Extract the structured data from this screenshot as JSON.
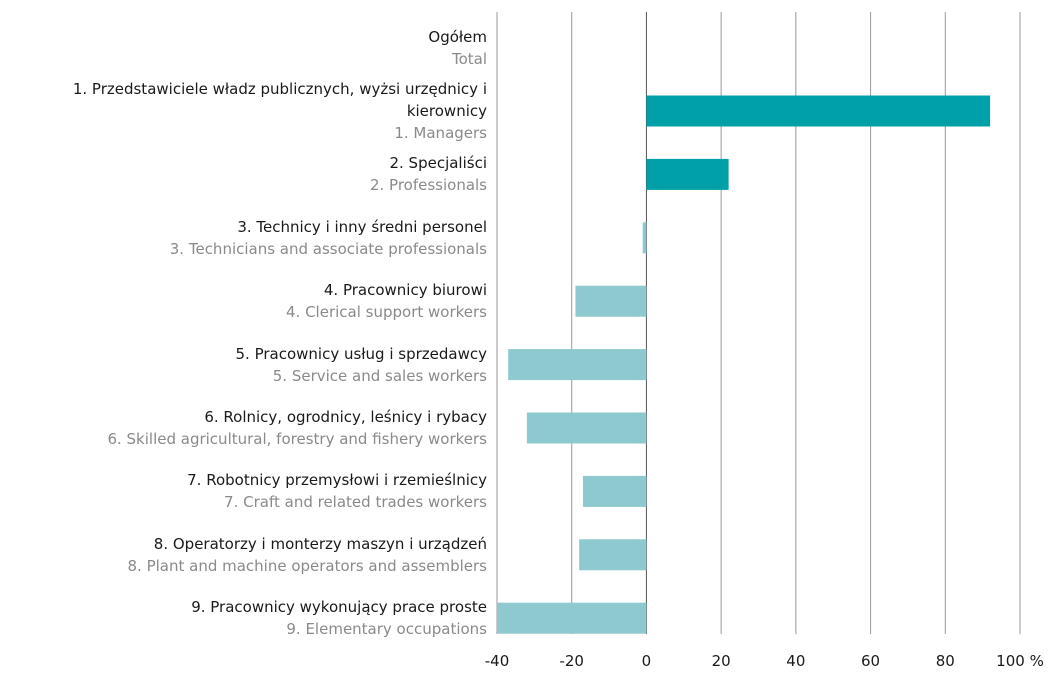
{
  "chart_data": {
    "type": "bar",
    "orientation": "horizontal",
    "categories": [
      "Ogółem",
      "1. Przedstawiciele władz publicznych, wyżsi urzędnicy i kierownicy",
      "2. Specjaliści",
      "3. Technicy i inny średni personel",
      "4. Pracownicy biurowi",
      "5. Pracownicy usług i sprzedawcy",
      "6. Rolnicy, ogrodnicy, leśnicy i rybacy",
      "7. Robotnicy przemysłowi i rzemieślnicy",
      "8. Operatorzy i monterzy maszyn  i urządzeń",
      "9. Pracownicy wykonujący prace proste"
    ],
    "categories_en": [
      "Total",
      "1. Managers",
      "2. Professionals",
      "3. Technicians and associate professionals",
      "4. Clerical support workers",
      "5. Service and sales workers",
      "6. Skilled agricultural, forestry and fishery workers",
      "7. Craft and related trades workers",
      "8. Plant and machine operators and assemblers",
      "9. Elementary occupations"
    ],
    "values": [
      null,
      92,
      22,
      -1,
      -19,
      -37,
      -32,
      -17,
      -18,
      -40
    ],
    "colors": [
      null,
      "#00a0a8",
      "#00a0a8",
      "#8ec9cf",
      "#8ec9cf",
      "#8ec9cf",
      "#8ec9cf",
      "#8ec9cf",
      "#8ec9cf",
      "#8ec9cf"
    ],
    "xlim": [
      -40,
      100
    ],
    "xticks": [
      -40,
      -20,
      0,
      20,
      40,
      60,
      80,
      {
        "value": 100,
        "label": "100 %"
      }
    ],
    "grid": true
  }
}
